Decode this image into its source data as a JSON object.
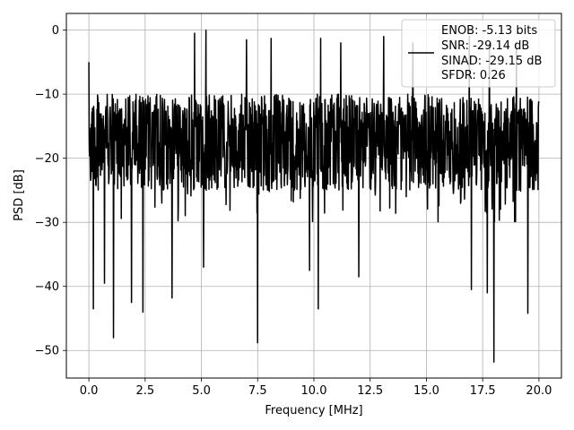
{
  "chart_data": {
    "type": "line",
    "xlabel": "Frequency [MHz]",
    "ylabel": "PSD [dB]",
    "xlim": [
      -1.0,
      21.0
    ],
    "ylim": [
      -54.3,
      2.6
    ],
    "x_ticks": [
      0.0,
      2.5,
      5.0,
      7.5,
      10.0,
      12.5,
      15.0,
      17.5,
      20.0
    ],
    "x_tick_labels": [
      "0.0",
      "2.5",
      "5.0",
      "7.5",
      "10.0",
      "12.5",
      "15.0",
      "17.5",
      "20.0"
    ],
    "y_ticks": [
      0,
      -10,
      -20,
      -30,
      -40,
      -50
    ],
    "y_tick_labels": [
      "0",
      "−10",
      "−20",
      "−30",
      "−40",
      "−50"
    ],
    "grid": true,
    "legend_position": "top-right",
    "legend_lines": [
      "ENOB: -5.13 bits",
      "SNR: -29.14 dB",
      "SINAD: -29.15 dB",
      "SFDR: 0.26"
    ],
    "series": [
      {
        "color": "#000000",
        "x_range": [
          0.0,
          20.0
        ],
        "n_points": 1500,
        "noise_floor_db": [
          -30,
          -11
        ],
        "typical_band_db": [
          -25,
          -10
        ],
        "peaks": [
          {
            "x": 0.0,
            "y": -5.0
          },
          {
            "x": 4.7,
            "y": -0.5
          },
          {
            "x": 5.2,
            "y": 0.0
          },
          {
            "x": 7.0,
            "y": -1.5
          },
          {
            "x": 8.1,
            "y": -1.3
          },
          {
            "x": 10.3,
            "y": -1.3
          },
          {
            "x": 11.2,
            "y": -2.0
          },
          {
            "x": 13.1,
            "y": -1.0
          },
          {
            "x": 14.4,
            "y": -2.0
          },
          {
            "x": 16.9,
            "y": -1.0
          },
          {
            "x": 17.8,
            "y": -2.2
          },
          {
            "x": 19.0,
            "y": -2.0
          }
        ],
        "dips": [
          {
            "x": 0.2,
            "y": -43.5
          },
          {
            "x": 0.7,
            "y": -39.5
          },
          {
            "x": 1.1,
            "y": -48.0
          },
          {
            "x": 1.9,
            "y": -42.5
          },
          {
            "x": 2.4,
            "y": -44.0
          },
          {
            "x": 3.7,
            "y": -41.8
          },
          {
            "x": 5.1,
            "y": -37.0
          },
          {
            "x": 7.5,
            "y": -48.8
          },
          {
            "x": 9.8,
            "y": -37.5
          },
          {
            "x": 10.2,
            "y": -43.5
          },
          {
            "x": 12.0,
            "y": -38.5
          },
          {
            "x": 17.0,
            "y": -40.5
          },
          {
            "x": 17.7,
            "y": -41.0
          },
          {
            "x": 18.0,
            "y": -51.8
          },
          {
            "x": 19.5,
            "y": -44.2
          }
        ]
      }
    ]
  }
}
